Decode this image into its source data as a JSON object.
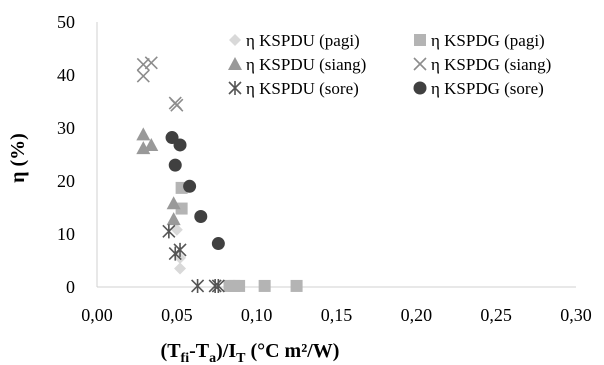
{
  "chart_data": {
    "type": "scatter",
    "title": "",
    "xlabel": {
      "main1": "(T",
      "sub1": "fi",
      "main2": "-T",
      "sub2": "a",
      "main3": ")/I",
      "sub3": "T",
      "main4": " (°C m²/W)"
    },
    "ylabel": "η (%)",
    "xlim": [
      0,
      0.3
    ],
    "ylim": [
      0,
      50
    ],
    "x_ticks": [
      "0,00",
      "0,05",
      "0,10",
      "0,15",
      "0,20",
      "0,25",
      "0,30"
    ],
    "y_ticks": [
      "0",
      "10",
      "20",
      "30",
      "40",
      "50"
    ],
    "x_tick_values": [
      0,
      0.05,
      0.1,
      0.15,
      0.2,
      0.25,
      0.3
    ],
    "y_tick_values": [
      0,
      10,
      20,
      30,
      40,
      50
    ],
    "grid": false,
    "legend_position": "top-right",
    "series": [
      {
        "name": "η KSPDU (pagi)",
        "marker": "diamond",
        "color": "#d9d9d9",
        "points": [
          [
            0.05,
            10.8
          ],
          [
            0.052,
            5.5
          ],
          [
            0.052,
            3.5
          ]
        ]
      },
      {
        "name": "η KSPDG (pagi)",
        "marker": "square",
        "color": "#b4b4b4",
        "points": [
          [
            0.053,
            18.7
          ],
          [
            0.053,
            14.8
          ],
          [
            0.083,
            0.2
          ],
          [
            0.086,
            0.2
          ],
          [
            0.089,
            0.2
          ],
          [
            0.105,
            0.2
          ],
          [
            0.125,
            0.2
          ]
        ]
      },
      {
        "name": "η KSPDU (siang)",
        "marker": "triangle",
        "color": "#999999",
        "points": [
          [
            0.029,
            28.8
          ],
          [
            0.029,
            26.2
          ],
          [
            0.034,
            26.8
          ],
          [
            0.048,
            15.8
          ],
          [
            0.048,
            12.8
          ]
        ]
      },
      {
        "name": "η KSPDG (siang)",
        "marker": "x",
        "color": "#8c8c8c",
        "points": [
          [
            0.029,
            42.0
          ],
          [
            0.029,
            39.8
          ],
          [
            0.034,
            42.3
          ],
          [
            0.049,
            34.7
          ],
          [
            0.05,
            34.3
          ]
        ]
      },
      {
        "name": "η KSPDU (sore)",
        "marker": "asterisk",
        "color": "#555555",
        "points": [
          [
            0.045,
            10.5
          ],
          [
            0.049,
            6.3
          ],
          [
            0.052,
            7.0
          ],
          [
            0.063,
            0.2
          ],
          [
            0.074,
            0.2
          ],
          [
            0.076,
            0.2
          ]
        ]
      },
      {
        "name": "η KSPDG (sore)",
        "marker": "circle",
        "color": "#404040",
        "points": [
          [
            0.047,
            28.2
          ],
          [
            0.049,
            23.0
          ],
          [
            0.052,
            26.8
          ],
          [
            0.058,
            19.0
          ],
          [
            0.065,
            13.3
          ],
          [
            0.076,
            8.2
          ]
        ]
      }
    ]
  }
}
